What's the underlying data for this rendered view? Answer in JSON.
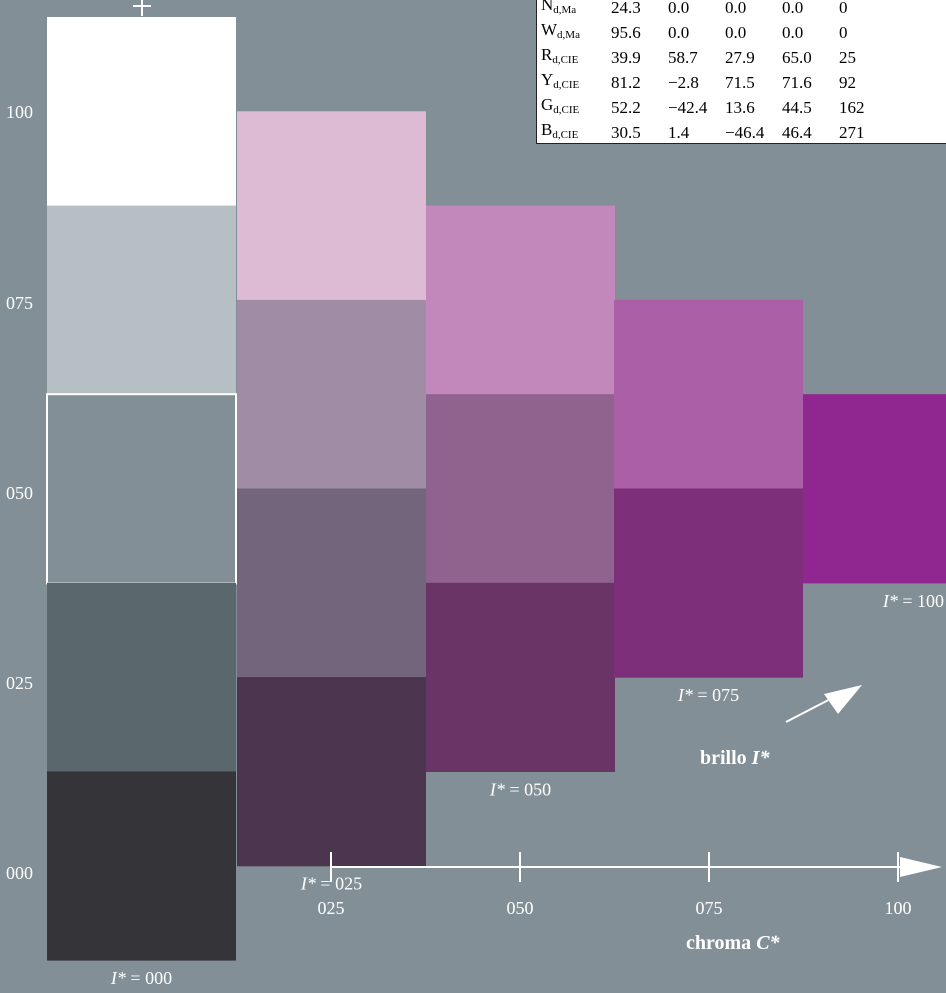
{
  "chart_data": {
    "type": "table",
    "y_ticks": [
      "100",
      "075",
      "050",
      "025",
      "000"
    ],
    "x_ticks": [
      "025",
      "050",
      "075",
      "100"
    ],
    "x_axis_label_text": "chroma ",
    "x_axis_label_var": "C*",
    "brightness_label_text": "brillo ",
    "brightness_label_var": "I*",
    "columns": [
      {
        "label_var": "I*",
        "label_text": " = 000",
        "cells": [
          {
            "color": "#ffffff",
            "highlight": false
          },
          {
            "color": "#b5bfc4",
            "highlight": false
          },
          {
            "color": "#828f96",
            "highlight": true
          },
          {
            "color": "#5a686e",
            "highlight": false
          },
          {
            "color": "#353539",
            "highlight": false
          }
        ]
      },
      {
        "label_var": "I*",
        "label_text": " = 025",
        "cells": [
          {
            "color": "#debbd5",
            "highlight": false
          },
          {
            "color": "#a18ca5",
            "highlight": false
          },
          {
            "color": "#73657c",
            "highlight": false
          },
          {
            "color": "#4c354f",
            "highlight": false
          }
        ]
      },
      {
        "label_var": "I*",
        "label_text": " = 050",
        "cells": [
          {
            "color": "#c388bb",
            "highlight": false
          },
          {
            "color": "#8f638d",
            "highlight": false
          },
          {
            "color": "#693466",
            "highlight": false
          }
        ]
      },
      {
        "label_var": "I*",
        "label_text": " = 075",
        "cells": [
          {
            "color": "#aa5fa6",
            "highlight": false
          },
          {
            "color": "#7e2f7a",
            "highlight": false
          }
        ]
      },
      {
        "label_var": "I*",
        "label_text": " = 100",
        "cells": [
          {
            "color": "#902790",
            "highlight": false
          }
        ]
      }
    ],
    "table": [
      {
        "name": "N",
        "sub": "d,Ma",
        "vals": [
          "24.3",
          "0.0",
          "0.0",
          "0.0",
          "0"
        ]
      },
      {
        "name": "W",
        "sub": "d,Ma",
        "vals": [
          "95.6",
          "0.0",
          "0.0",
          "0.0",
          "0"
        ]
      },
      {
        "name": "R",
        "sub": "d,CIE",
        "vals": [
          "39.9",
          "58.7",
          "27.9",
          "65.0",
          "25"
        ]
      },
      {
        "name": "Y",
        "sub": "d,CIE",
        "vals": [
          "81.2",
          "−2.8",
          "71.5",
          "71.6",
          "92"
        ]
      },
      {
        "name": "G",
        "sub": "d,CIE",
        "vals": [
          "52.2",
          "−42.4",
          "13.6",
          "44.5",
          "162"
        ]
      },
      {
        "name": "B",
        "sub": "d,CIE",
        "vals": [
          "30.5",
          "1.4",
          "−46.4",
          "46.4",
          "271"
        ]
      }
    ]
  }
}
